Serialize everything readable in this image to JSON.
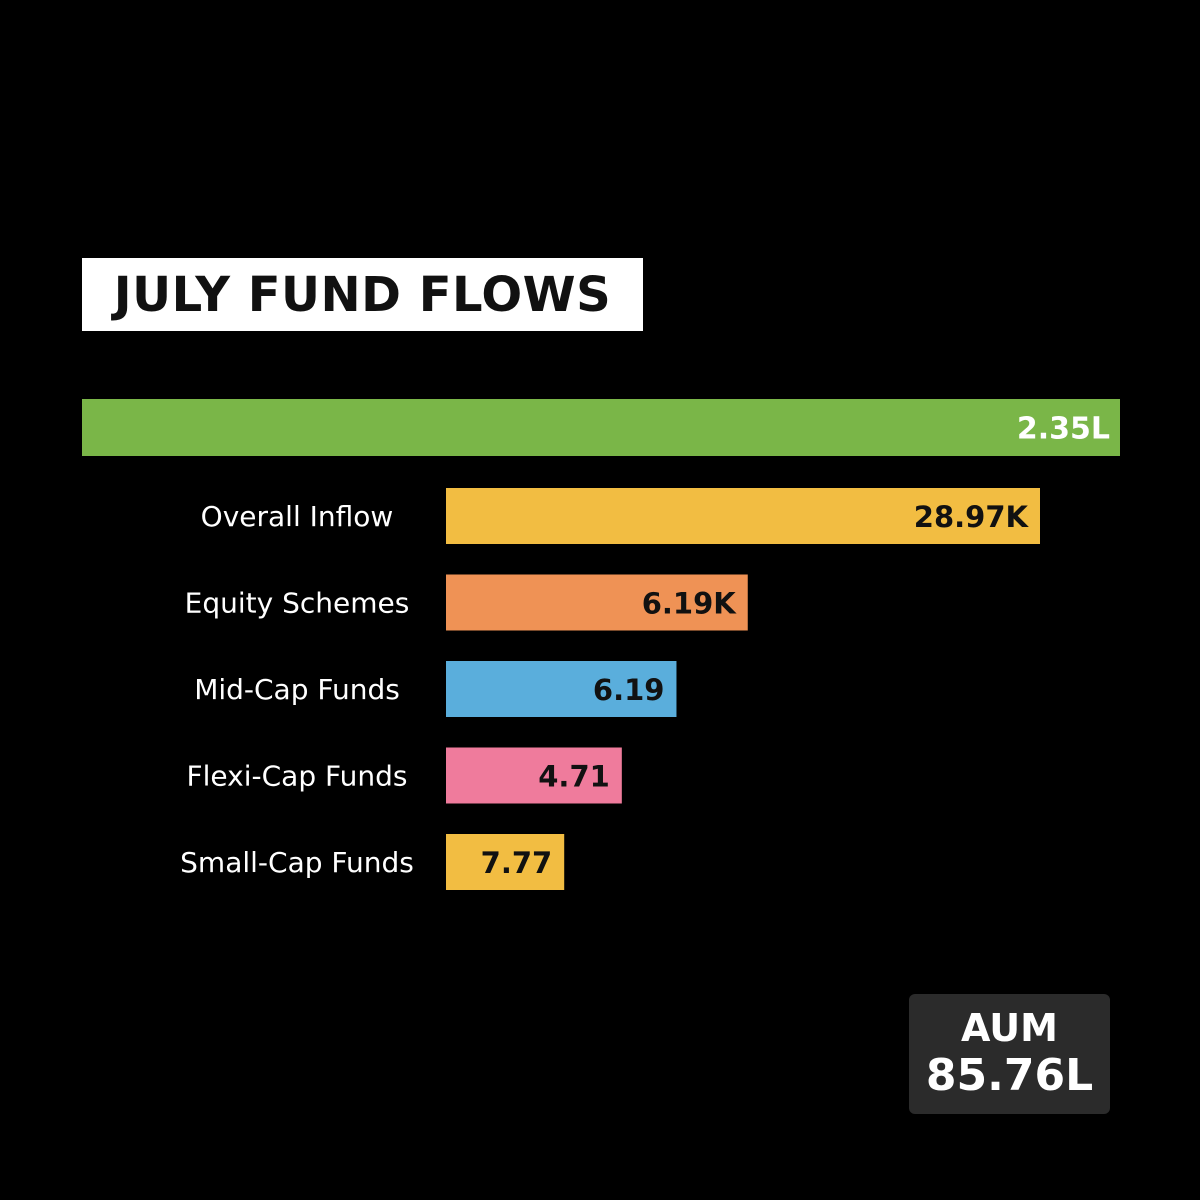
{
  "chart_data": {
    "type": "bar",
    "orientation": "horizontal",
    "title": "JULY FUND FLOWS",
    "total_bar": {
      "label": "",
      "value_label": "2.35L",
      "color": "#7ab648"
    },
    "categories": [
      "Overall Inflow",
      "Equity Schemes",
      "Mid-Cap Funds",
      "Flexi-Cap Funds",
      "Small-Cap Funds"
    ],
    "value_labels": [
      "28.97K",
      "6.19K",
      "6.19",
      "4.71",
      "7.77"
    ],
    "bar_lengths_relative": [
      1.0,
      0.508,
      0.388,
      0.296,
      0.199
    ],
    "colors": [
      "#f2bd42",
      "#ef9255",
      "#5aaedc",
      "#ef7b9c",
      "#f2bd42"
    ]
  },
  "aum": {
    "label": "AUM",
    "value": "85.76L"
  },
  "colors": {
    "background": "#000000",
    "title_box": "#ffffff",
    "aum_box": "#2b2b2b"
  }
}
